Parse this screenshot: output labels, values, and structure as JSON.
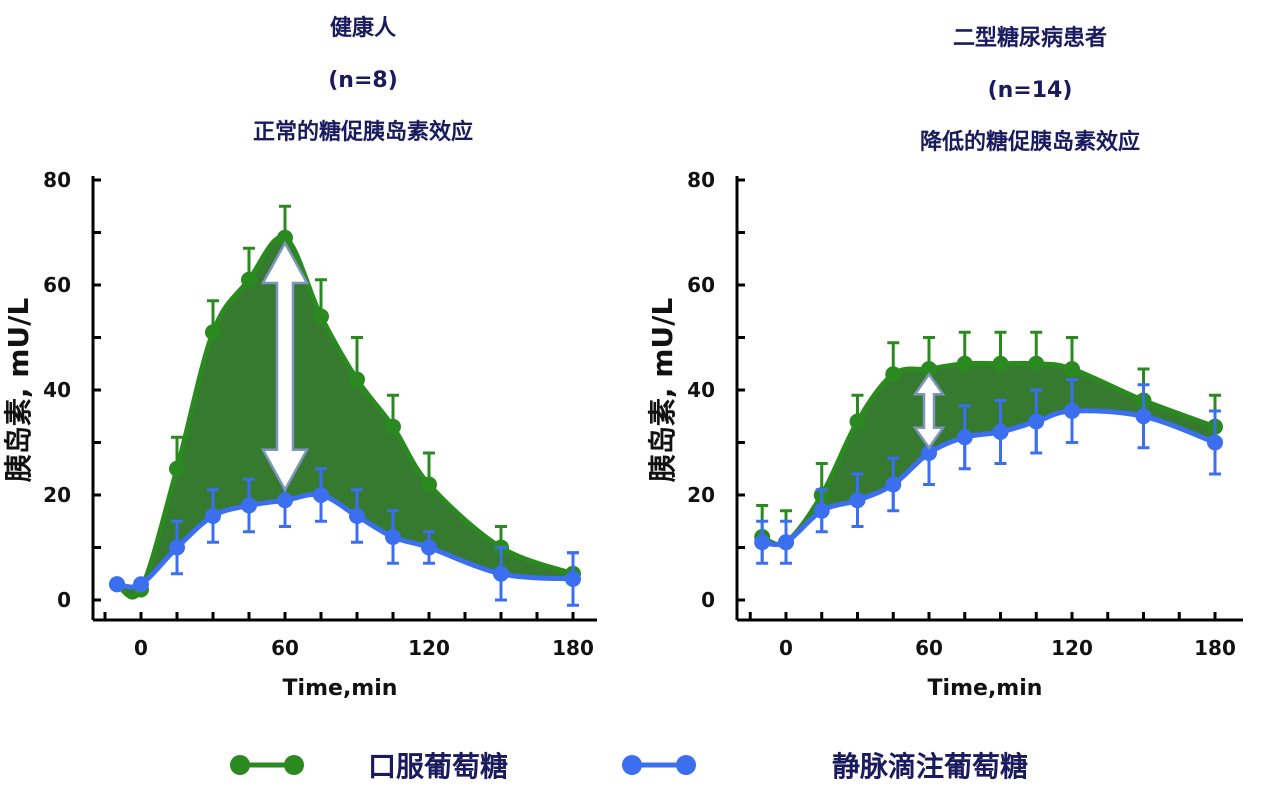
{
  "colors": {
    "oral": "#2a8a1f",
    "oral_fill": "#1f6b18",
    "iv": "#3b6ff0",
    "title": "#1a1a5e"
  },
  "left": {
    "title_lines": [
      "健康人",
      "(n=8)",
      "正常的糖促胰岛素效应"
    ]
  },
  "right": {
    "title_lines": [
      "二型糖尿病患者",
      "(n=14)",
      "降低的糖促胰岛素效应"
    ]
  },
  "legend": {
    "oral_label": "口服葡萄糖",
    "iv_label": "静脉滴注葡萄糖"
  },
  "chart_data": [
    {
      "type": "line",
      "title": "健康人 (n=8) 正常的糖促胰岛素效应",
      "xlabel": "Time,min",
      "ylabel": "胰岛素, mU/L",
      "xlim": [
        -15,
        190
      ],
      "ylim": [
        0,
        80
      ],
      "xticks": [
        0,
        60,
        120,
        180
      ],
      "yticks": [
        0,
        20,
        40,
        60,
        80
      ],
      "series": [
        {
          "name": "口服葡萄糖",
          "x": [
            -10,
            0,
            15,
            30,
            45,
            60,
            75,
            90,
            105,
            120,
            150,
            180
          ],
          "values": [
            3,
            2,
            25,
            51,
            61,
            69,
            54,
            42,
            33,
            22,
            10,
            5
          ],
          "errors": [
            0,
            0,
            6,
            6,
            6,
            6,
            7,
            8,
            6,
            6,
            4,
            4
          ]
        },
        {
          "name": "静脉滴注葡萄糖",
          "x": [
            -10,
            0,
            15,
            30,
            45,
            60,
            75,
            90,
            105,
            120,
            150,
            180
          ],
          "values": [
            3,
            3,
            10,
            16,
            18,
            19,
            20,
            16,
            12,
            10,
            5,
            4
          ],
          "errors": [
            0,
            0,
            5,
            5,
            5,
            5,
            5,
            5,
            5,
            3,
            5,
            5
          ]
        }
      ]
    },
    {
      "type": "line",
      "title": "二型糖尿病患者 (n=14) 降低的糖促胰岛素效应",
      "xlabel": "Time,min",
      "ylabel": "胰岛素, mU/L",
      "xlim": [
        -15,
        190
      ],
      "ylim": [
        0,
        80
      ],
      "xticks": [
        0,
        60,
        120,
        180
      ],
      "yticks": [
        0,
        20,
        40,
        60,
        80
      ],
      "series": [
        {
          "name": "口服葡萄糖",
          "x": [
            -10,
            0,
            15,
            30,
            45,
            60,
            75,
            90,
            105,
            120,
            150,
            180
          ],
          "values": [
            12,
            11,
            20,
            34,
            43,
            44,
            45,
            45,
            45,
            44,
            38,
            33
          ],
          "errors": [
            6,
            6,
            6,
            5,
            6,
            6,
            6,
            6,
            6,
            6,
            6,
            6
          ]
        },
        {
          "name": "静脉滴注葡萄糖",
          "x": [
            -10,
            0,
            15,
            30,
            45,
            60,
            75,
            90,
            105,
            120,
            150,
            180
          ],
          "values": [
            11,
            11,
            17,
            19,
            22,
            28,
            31,
            32,
            34,
            36,
            35,
            30
          ],
          "errors": [
            4,
            4,
            4,
            5,
            5,
            6,
            6,
            6,
            6,
            6,
            6,
            6
          ]
        }
      ]
    }
  ]
}
